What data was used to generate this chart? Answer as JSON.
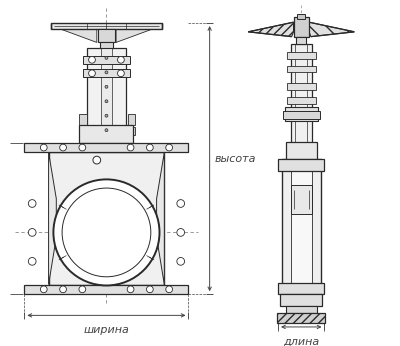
{
  "bg_color": "#ffffff",
  "line_color": "#2a2a2a",
  "dim_color": "#444444",
  "label_shirna": "ширина",
  "label_dlina": "длина",
  "label_vysota": "высота",
  "font_size": 8,
  "fig_width": 4.0,
  "fig_height": 3.46,
  "dpi": 100
}
